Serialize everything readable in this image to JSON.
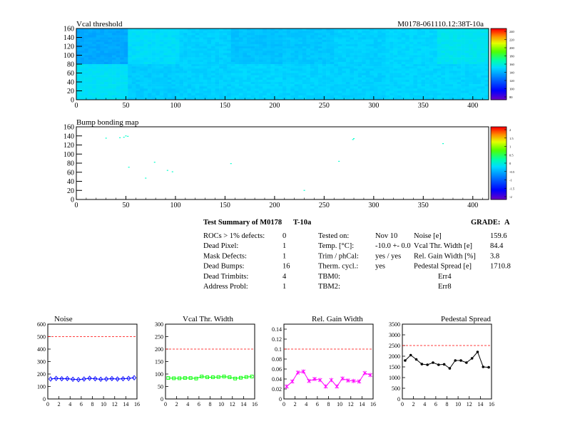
{
  "charts_meta": {
    "map_id_label": "M0178-061110.12:38T-10a",
    "colors": {
      "threshold_line": "#ff0000",
      "noise": "#0000ff",
      "vcal": "#00ff00",
      "gain": "#ff00ff",
      "pedestal": "#000000",
      "cyan_point": "#00ffcc"
    }
  },
  "summary": {
    "title": "Test Summary of M0178",
    "subtitle": "T-10a",
    "grade_label": "GRADE:",
    "grade_value": "A",
    "col1": [
      {
        "label": "ROCs > 1% defects:",
        "value": "0"
      },
      {
        "label": "Dead Pixel:",
        "value": "1"
      },
      {
        "label": "Mask Defects:",
        "value": "1"
      },
      {
        "label": "Dead Bumps:",
        "value": "16"
      },
      {
        "label": "Dead Trimbits:",
        "value": "4"
      },
      {
        "label": "Address Probl:",
        "value": "1"
      }
    ],
    "col2": [
      {
        "label": "Tested on:",
        "value": "Nov 10"
      },
      {
        "label": "Temp. [°C]:",
        "value": "-10.0 +- 0.0"
      },
      {
        "label": "Trim / phCal:",
        "value": "yes / yes"
      },
      {
        "label": "Therm. cycl.:",
        "value": "yes"
      },
      {
        "label": "TBM0:",
        "value": "Err4"
      },
      {
        "label": "TBM2:",
        "value": "Err8"
      }
    ],
    "col3": [
      {
        "label": "Noise [e]",
        "value": "159.6"
      },
      {
        "label": "Vcal Thr. Width [e]",
        "value": "84.4"
      },
      {
        "label": "Rel. Gain Width [%]",
        "value": "3.8"
      },
      {
        "label": "Pedestal Spread [e]",
        "value": "1710.8"
      }
    ]
  },
  "chart_data": [
    {
      "type": "heatmap",
      "title": "Vcal threshold",
      "xlim": [
        0,
        416
      ],
      "ylim": [
        0,
        160
      ],
      "x_ticks": [
        "0",
        "50",
        "100",
        "150",
        "200",
        "250",
        "300",
        "350",
        "400"
      ],
      "y_ticks": [
        "0",
        "20",
        "40",
        "60",
        "80",
        "100",
        "120",
        "140",
        "160"
      ],
      "colorbar_ticks": [
        "240",
        "220",
        "200",
        "180",
        "160",
        "140",
        "120",
        "100",
        "80"
      ],
      "roc_means": {
        "top": [
          0.55,
          0.78,
          0.72,
          0.66,
          0.68,
          0.72,
          0.75,
          0.82
        ],
        "bottom": [
          0.8,
          0.7,
          0.72,
          0.74,
          0.73,
          0.72,
          0.74,
          0.74
        ]
      }
    },
    {
      "type": "scatter",
      "title": "Bump bonding map",
      "xlim": [
        0,
        416
      ],
      "ylim": [
        0,
        160
      ],
      "x_ticks": [
        "0",
        "50",
        "100",
        "150",
        "200",
        "250",
        "300",
        "350",
        "400"
      ],
      "y_ticks": [
        "0",
        "20",
        "40",
        "60",
        "80",
        "100",
        "120",
        "140",
        "160"
      ],
      "colorbar_ticks": [
        "2",
        "1.5",
        "1",
        "0.5",
        "0",
        "-0.5",
        "-1",
        "-1.5",
        "-2"
      ],
      "points": [
        {
          "x": 30,
          "y": 135
        },
        {
          "x": 48,
          "y": 137
        },
        {
          "x": 50,
          "y": 140
        },
        {
          "x": 53,
          "y": 71
        },
        {
          "x": 70,
          "y": 47
        },
        {
          "x": 79,
          "y": 82
        },
        {
          "x": 92,
          "y": 64
        },
        {
          "x": 97,
          "y": 61
        },
        {
          "x": 156,
          "y": 79
        },
        {
          "x": 230,
          "y": 20
        },
        {
          "x": 265,
          "y": 84
        },
        {
          "x": 279,
          "y": 132
        },
        {
          "x": 280,
          "y": 134
        },
        {
          "x": 370,
          "y": 123
        },
        {
          "x": 44,
          "y": 136
        },
        {
          "x": 52,
          "y": 139
        }
      ]
    },
    {
      "type": "line",
      "title": "Noise",
      "xlim": [
        0,
        16
      ],
      "ylim": [
        0,
        600
      ],
      "x_ticks": [
        "0",
        "2",
        "4",
        "6",
        "8",
        "10",
        "12",
        "14",
        "16"
      ],
      "y_ticks": [
        "0",
        "100",
        "200",
        "300",
        "400",
        "500",
        "600"
      ],
      "threshold": 500,
      "x": [
        0.5,
        1.5,
        2.5,
        3.5,
        4.5,
        5.5,
        6.5,
        7.5,
        8.5,
        9.5,
        10.5,
        11.5,
        12.5,
        13.5,
        14.5,
        15.5
      ],
      "values": [
        160,
        165,
        162,
        163,
        158,
        155,
        160,
        166,
        162,
        158,
        160,
        163,
        160,
        162,
        165,
        170
      ]
    },
    {
      "type": "line",
      "title": "Vcal Thr. Width",
      "xlim": [
        0,
        16
      ],
      "ylim": [
        0,
        300
      ],
      "x_ticks": [
        "0",
        "2",
        "4",
        "6",
        "8",
        "10",
        "12",
        "14",
        "16"
      ],
      "y_ticks": [
        "0",
        "50",
        "100",
        "150",
        "200",
        "250",
        "300"
      ],
      "threshold": 200,
      "x": [
        0.5,
        1.5,
        2.5,
        3.5,
        4.5,
        5.5,
        6.5,
        7.5,
        8.5,
        9.5,
        10.5,
        11.5,
        12.5,
        13.5,
        14.5,
        15.5
      ],
      "values": [
        84,
        83,
        83,
        84,
        84,
        82,
        90,
        87,
        87,
        88,
        90,
        87,
        82,
        85,
        88,
        90
      ]
    },
    {
      "type": "line",
      "title": "Rel. Gain Width",
      "xlim": [
        0,
        16
      ],
      "ylim": [
        0,
        0.15
      ],
      "x_ticks": [
        "0",
        "2",
        "4",
        "6",
        "8",
        "10",
        "12",
        "14",
        "16"
      ],
      "y_ticks": [
        "0",
        "0.02",
        "0.04",
        "0.06",
        "0.08",
        "0.1",
        "0.12",
        "0.14"
      ],
      "threshold": 0.1,
      "x": [
        0.5,
        1.5,
        2.5,
        3.5,
        4.5,
        5.5,
        6.5,
        7.5,
        8.5,
        9.5,
        10.5,
        11.5,
        12.5,
        13.5,
        14.5,
        15.5
      ],
      "values": [
        0.025,
        0.035,
        0.053,
        0.055,
        0.036,
        0.04,
        0.038,
        0.025,
        0.038,
        0.025,
        0.041,
        0.037,
        0.036,
        0.035,
        0.052,
        0.048
      ]
    },
    {
      "type": "line",
      "title": "Pedestal Spread",
      "xlim": [
        0,
        16
      ],
      "ylim": [
        0,
        3500
      ],
      "x_ticks": [
        "0",
        "2",
        "4",
        "6",
        "8",
        "10",
        "12",
        "14",
        "16"
      ],
      "y_ticks": [
        "0",
        "500",
        "1000",
        "1500",
        "2000",
        "2500",
        "3000",
        "3500"
      ],
      "threshold": 2500,
      "x": [
        0.5,
        1.5,
        2.5,
        3.5,
        4.5,
        5.5,
        6.5,
        7.5,
        8.5,
        9.5,
        10.5,
        11.5,
        12.5,
        13.5,
        14.5,
        15.5
      ],
      "values": [
        1800,
        2050,
        1850,
        1630,
        1600,
        1700,
        1600,
        1620,
        1430,
        1800,
        1800,
        1700,
        1900,
        2200,
        1500,
        1480
      ]
    }
  ]
}
